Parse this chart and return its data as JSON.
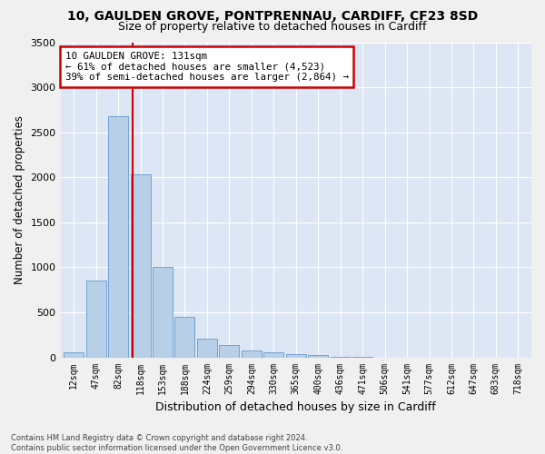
{
  "title_line1": "10, GAULDEN GROVE, PONTPRENNAU, CARDIFF, CF23 8SD",
  "title_line2": "Size of property relative to detached houses in Cardiff",
  "xlabel": "Distribution of detached houses by size in Cardiff",
  "ylabel": "Number of detached properties",
  "footnote_line1": "Contains HM Land Registry data © Crown copyright and database right 2024.",
  "footnote_line2": "Contains public sector information licensed under the Open Government Licence v3.0.",
  "bar_labels": [
    "12sqm",
    "47sqm",
    "82sqm",
    "118sqm",
    "153sqm",
    "188sqm",
    "224sqm",
    "259sqm",
    "294sqm",
    "330sqm",
    "365sqm",
    "400sqm",
    "436sqm",
    "471sqm",
    "506sqm",
    "541sqm",
    "577sqm",
    "612sqm",
    "647sqm",
    "683sqm",
    "718sqm"
  ],
  "bar_values": [
    60,
    850,
    2680,
    2030,
    1000,
    450,
    210,
    140,
    75,
    60,
    35,
    30,
    10,
    5,
    0,
    0,
    0,
    0,
    0,
    0,
    0
  ],
  "bar_color": "#b8cfe8",
  "bar_edgecolor": "#6699cc",
  "property_line_label": "10 GAULDEN GROVE: 131sqm",
  "annotation_line1": "← 61% of detached houses are smaller (4,523)",
  "annotation_line2": "39% of semi-detached houses are larger (2,864) →",
  "annotation_box_facecolor": "#ffffff",
  "annotation_box_edgecolor": "#cc0000",
  "vline_color": "#cc0000",
  "vline_x": 2.65,
  "ylim": [
    0,
    3500
  ],
  "yticks": [
    0,
    500,
    1000,
    1500,
    2000,
    2500,
    3000,
    3500
  ],
  "background_color": "#dce6f5",
  "grid_color": "#ffffff",
  "fig_facecolor": "#f0f0f0"
}
